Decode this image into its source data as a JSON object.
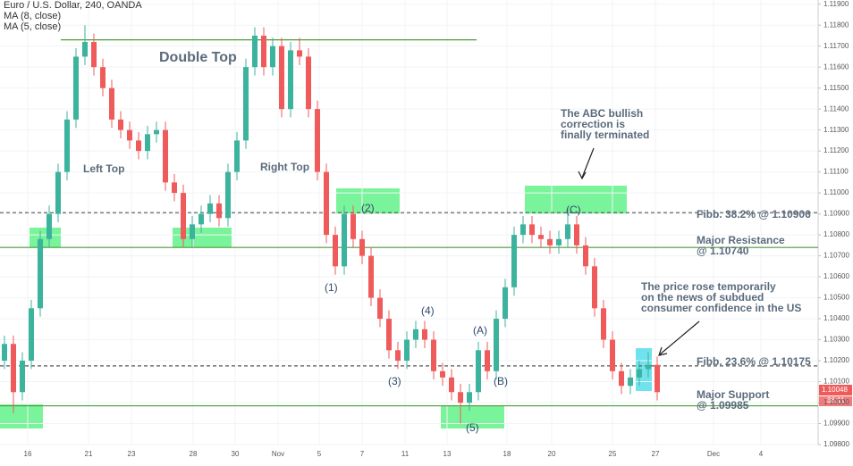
{
  "chart_data": {
    "type": "candlestick",
    "title": "Euro / U.S. Dollar, 240, OANDA",
    "indicators": [
      "MA (8, close)",
      "MA (5, close)"
    ],
    "up_color": "#3cb39c",
    "down_color": "#ef5b5b",
    "xlim": [
      -0.5,
      91
    ],
    "ylim": [
      1.098,
      1.1192
    ],
    "xticks": [
      {
        "value": 2.6,
        "label": "16"
      },
      {
        "value": 9.4,
        "label": "21"
      },
      {
        "value": 14.2,
        "label": "23"
      },
      {
        "value": 21.1,
        "label": "28"
      },
      {
        "value": 25.8,
        "label": "30"
      },
      {
        "value": 30.6,
        "label": "Nov"
      },
      {
        "value": 35.2,
        "label": "5"
      },
      {
        "value": 40,
        "label": "7"
      },
      {
        "value": 44.8,
        "label": "11"
      },
      {
        "value": 49.5,
        "label": "13"
      },
      {
        "value": 56.2,
        "label": "18"
      },
      {
        "value": 61.2,
        "label": "20"
      },
      {
        "value": 68,
        "label": "25"
      },
      {
        "value": 72.8,
        "label": "27"
      },
      {
        "value": 79.3,
        "label": "Dec"
      },
      {
        "value": 84.6,
        "label": "4"
      }
    ],
    "yticks": [
      {
        "value": 1.098,
        "label": "1.09800"
      },
      {
        "value": 1.099,
        "label": "1.09900"
      },
      {
        "value": 1.1,
        "label": "1.10000"
      },
      {
        "value": 1.101,
        "label": "1.10100"
      },
      {
        "value": 1.102,
        "label": "1.10200"
      },
      {
        "value": 1.103,
        "label": "1.10300"
      },
      {
        "value": 1.104,
        "label": "1.10400"
      },
      {
        "value": 1.105,
        "label": "1.10500"
      },
      {
        "value": 1.106,
        "label": "1.10600"
      },
      {
        "value": 1.107,
        "label": "1.10700"
      },
      {
        "value": 1.108,
        "label": "1.10800"
      },
      {
        "value": 1.109,
        "label": "1.10900"
      },
      {
        "value": 1.11,
        "label": "1.11000"
      },
      {
        "value": 1.111,
        "label": "1.11100"
      },
      {
        "value": 1.112,
        "label": "1.11200"
      },
      {
        "value": 1.113,
        "label": "1.11300"
      },
      {
        "value": 1.114,
        "label": "1.11400"
      },
      {
        "value": 1.115,
        "label": "1.11500"
      },
      {
        "value": 1.116,
        "label": "1.11600"
      },
      {
        "value": 1.117,
        "label": "1.11700"
      },
      {
        "value": 1.118,
        "label": "1.11800"
      },
      {
        "value": 1.119,
        "label": "1.11900"
      }
    ],
    "open": [
      1.102,
      1.1028,
      1.1005,
      1.102,
      1.1045,
      1.1078,
      1.109,
      1.111,
      1.1135,
      1.1165,
      1.1172,
      1.116,
      1.115,
      1.1135,
      1.113,
      1.1125,
      1.112,
      1.1128,
      1.113,
      1.1105,
      1.11,
      1.1078,
      1.1085,
      1.109,
      1.1095,
      1.1088,
      1.111,
      1.1125,
      1.116,
      1.1175,
      1.116,
      1.117,
      1.114,
      1.1168,
      1.1165,
      1.114,
      1.111,
      1.108,
      1.1065,
      1.109,
      1.1078,
      1.107,
      1.105,
      1.104,
      1.1025,
      1.102,
      1.103,
      1.1035,
      1.103,
      1.1015,
      1.1012,
      1.1005,
      1.1,
      1.1005,
      1.1025,
      1.1015,
      1.104,
      1.1055,
      1.108,
      1.1085,
      1.108,
      1.1078,
      1.1075,
      1.1078,
      1.1085,
      1.1075,
      1.1065,
      1.1045,
      1.103,
      1.1015,
      1.1008,
      1.1012,
      1.1016,
      1.1018
    ],
    "high": [
      1.1032,
      1.1032,
      1.1024,
      1.1049,
      1.1082,
      1.1094,
      1.1114,
      1.1139,
      1.1169,
      1.118,
      1.1176,
      1.1164,
      1.1154,
      1.1139,
      1.1134,
      1.1129,
      1.1132,
      1.1134,
      1.1134,
      1.1109,
      1.1104,
      1.1089,
      1.1094,
      1.1099,
      1.1099,
      1.1114,
      1.1129,
      1.1164,
      1.1179,
      1.1179,
      1.1174,
      1.1174,
      1.1172,
      1.1174,
      1.1169,
      1.1144,
      1.1114,
      1.1084,
      1.1094,
      1.1094,
      1.1082,
      1.1074,
      1.1054,
      1.1044,
      1.1029,
      1.1034,
      1.1039,
      1.1039,
      1.1034,
      1.1019,
      1.1016,
      1.1009,
      1.1009,
      1.1029,
      1.1029,
      1.1044,
      1.1059,
      1.1084,
      1.1089,
      1.1089,
      1.1084,
      1.1082,
      1.1082,
      1.1093,
      1.1089,
      1.1079,
      1.1069,
      1.1049,
      1.1034,
      1.1019,
      1.1016,
      1.102,
      1.1024,
      1.1022
    ],
    "low": [
      1.1016,
      1.0995,
      1.1001,
      1.1016,
      1.1041,
      1.1074,
      1.1086,
      1.1106,
      1.1131,
      1.1161,
      1.1156,
      1.1146,
      1.1131,
      1.1126,
      1.1121,
      1.1116,
      1.1116,
      1.1124,
      1.1101,
      1.1096,
      1.1074,
      1.1074,
      1.1081,
      1.1086,
      1.1084,
      1.1084,
      1.1106,
      1.1121,
      1.1156,
      1.1156,
      1.1156,
      1.1136,
      1.1136,
      1.1161,
      1.1136,
      1.1106,
      1.1076,
      1.1061,
      1.1061,
      1.1074,
      1.1066,
      1.1046,
      1.1036,
      1.1021,
      1.1016,
      1.1016,
      1.1026,
      1.1026,
      1.1011,
      1.1008,
      1.1001,
      1.099,
      1.0996,
      1.1001,
      1.1011,
      1.1011,
      1.1036,
      1.1051,
      1.1076,
      1.1076,
      1.1074,
      1.1071,
      1.1071,
      1.1074,
      1.1071,
      1.1061,
      1.1041,
      1.1026,
      1.1011,
      1.1004,
      1.1004,
      1.1008,
      1.1012,
      1.1001
    ],
    "close": [
      1.1028,
      1.1005,
      1.102,
      1.1045,
      1.1078,
      1.109,
      1.111,
      1.1135,
      1.1165,
      1.1172,
      1.116,
      1.115,
      1.1135,
      1.113,
      1.1125,
      1.112,
      1.1128,
      1.113,
      1.1105,
      1.11,
      1.1078,
      1.1085,
      1.109,
      1.1095,
      1.1088,
      1.111,
      1.1125,
      1.116,
      1.1175,
      1.116,
      1.117,
      1.114,
      1.1168,
      1.1165,
      1.114,
      1.111,
      1.108,
      1.1065,
      1.109,
      1.1078,
      1.107,
      1.105,
      1.104,
      1.1025,
      1.102,
      1.103,
      1.1035,
      1.103,
      1.1015,
      1.1012,
      1.1005,
      1.1,
      1.1005,
      1.1025,
      1.1015,
      1.104,
      1.1055,
      1.108,
      1.1085,
      1.108,
      1.1078,
      1.1075,
      1.1078,
      1.1085,
      1.1075,
      1.1065,
      1.1045,
      1.103,
      1.1015,
      1.1008,
      1.1012,
      1.1016,
      1.1018,
      1.1005
    ],
    "levels": [
      {
        "value": 1.1173,
        "style": "solid",
        "color": "#4c9a3a",
        "from": 6.3,
        "to": 52.8
      },
      {
        "value": 1.10906,
        "style": "dashed",
        "color": "#555555"
      },
      {
        "value": 1.1074,
        "style": "solid",
        "color": "#4c9a3a"
      },
      {
        "value": 1.10175,
        "style": "dashed",
        "color": "#555555"
      },
      {
        "value": 1.09985,
        "style": "solid",
        "color": "#4c9a3a"
      }
    ],
    "last_price": "1.10048",
    "countdown": "36:11",
    "annotations": {
      "double_top": "Double Top",
      "left_top": "Left Top",
      "right_top": "Right Top",
      "waves": [
        "(1)",
        "(2)",
        "(3)",
        "(4)",
        "(5)",
        "(A)",
        "(B)",
        "(C)"
      ],
      "abc": [
        "The ABC bullish",
        "correction is",
        "finally terminated"
      ],
      "fibb382": "Fibb. 38.2% @ 1.10906",
      "resistance": [
        "Major Resistance",
        "@ 1.10740"
      ],
      "news": [
        "The price rose temporarily",
        "on the news of subdued",
        "consumer confidence in the US"
      ],
      "fibb236": "Fibb. 23.6% @ 1.10175",
      "support": [
        "Major Support",
        "@ 1.09985"
      ]
    }
  }
}
